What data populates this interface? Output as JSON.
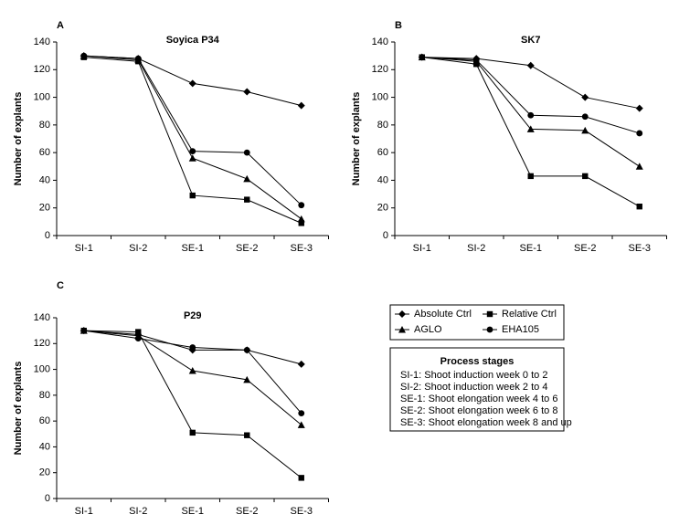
{
  "chart_data": [
    {
      "type": "line",
      "label": "A",
      "title": "Soyica P34",
      "y_label": "Number of explants",
      "categories": [
        "SI-1",
        "SI-2",
        "SE-1",
        "SE-2",
        "SE-3"
      ],
      "series": [
        {
          "marker": "diamond",
          "color": "#000000",
          "values": [
            130,
            128,
            110,
            104,
            94
          ]
        },
        {
          "marker": "square",
          "color": "#000000",
          "values": [
            129,
            126,
            29,
            26,
            9
          ]
        },
        {
          "marker": "triangle",
          "color": "#000000",
          "values": [
            130,
            127,
            56,
            41,
            12
          ]
        },
        {
          "marker": "circle",
          "color": "#000000",
          "values": [
            130,
            128,
            61,
            60,
            22
          ]
        }
      ],
      "ylim": [
        0,
        140
      ],
      "yticks": [
        0,
        20,
        40,
        60,
        80,
        100,
        120,
        140
      ]
    },
    {
      "type": "line",
      "label": "B",
      "title": "SK7",
      "y_label": "Number of explants",
      "categories": [
        "SI-1",
        "SI-2",
        "SE-1",
        "SE-2",
        "SE-3"
      ],
      "series": [
        {
          "marker": "diamond",
          "color": "#000000",
          "values": [
            129,
            128,
            123,
            100,
            92
          ]
        },
        {
          "marker": "square",
          "color": "#000000",
          "values": [
            129,
            124,
            43,
            43,
            21
          ]
        },
        {
          "marker": "triangle",
          "color": "#000000",
          "values": [
            129,
            126,
            77,
            76,
            50
          ]
        },
        {
          "marker": "circle",
          "color": "#000000",
          "values": [
            129,
            127,
            87,
            86,
            74
          ]
        }
      ],
      "ylim": [
        0,
        140
      ],
      "yticks": [
        0,
        20,
        40,
        60,
        80,
        100,
        120,
        140
      ]
    },
    {
      "type": "line",
      "label": "C",
      "title": "P29",
      "y_label": "Number of explants",
      "categories": [
        "SI-1",
        "SI-2",
        "SE-1",
        "SE-2",
        "SE-3"
      ],
      "series": [
        {
          "name": "Absolute Ctrl",
          "marker": "diamond",
          "color": "#000000",
          "values": [
            130,
            127,
            115,
            115,
            104
          ]
        },
        {
          "name": "Relative Ctrl",
          "marker": "square",
          "color": "#000000",
          "values": [
            130,
            129,
            51,
            49,
            16
          ]
        },
        {
          "name": "AGLO",
          "marker": "triangle",
          "color": "#000000",
          "values": [
            130,
            126,
            99,
            92,
            57
          ]
        },
        {
          "name": "EHA105",
          "marker": "circle",
          "color": "#000000",
          "values": [
            130,
            124,
            117,
            115,
            66
          ]
        }
      ],
      "ylim": [
        0,
        140
      ],
      "yticks": [
        0,
        20,
        40,
        60,
        80,
        100,
        120,
        140
      ]
    }
  ],
  "process_stages": {
    "title": "Process stages",
    "lines": [
      "SI-1: Shoot induction week 0 to 2",
      "SI-2: Shoot induction week 2 to 4",
      "SE-1: Shoot elongation week 4 to 6",
      "SE-2: Shoot elongation week 6 to 8",
      "SE-3: Shoot elongation week 8 and up"
    ]
  }
}
